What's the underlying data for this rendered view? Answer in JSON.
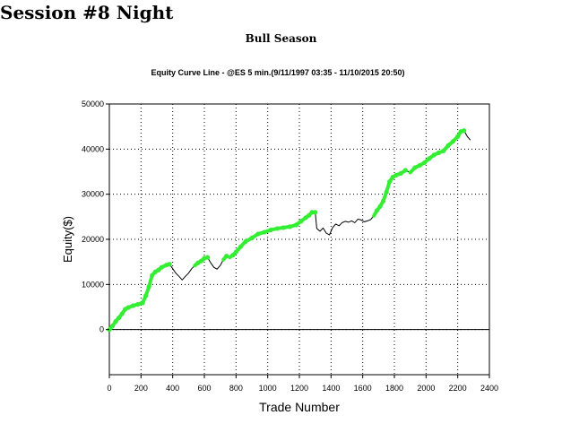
{
  "page": {
    "title": "Session #8 Night",
    "subtitle": "Bull Season"
  },
  "colors": {
    "line": "#000000",
    "highlight": "#33ee33",
    "grid": "#000000"
  },
  "chart_data": {
    "type": "line",
    "title": "Equity Curve Line - @ES 5 min.(9/11/1997 03:35 - 11/10/2015 20:50)",
    "xlabel": "Trade Number",
    "ylabel": "Equity($)",
    "xlim": [
      0,
      2400
    ],
    "ylim": [
      -10000,
      50000
    ],
    "x_ticks": [
      0,
      200,
      400,
      600,
      800,
      1000,
      1200,
      1400,
      1600,
      1800,
      2000,
      2200,
      2400
    ],
    "y_ticks": [
      0,
      10000,
      20000,
      30000,
      40000,
      50000
    ],
    "grid": true,
    "legend": "none",
    "series": [
      {
        "x": [
          0,
          20,
          40,
          60,
          80,
          100,
          120,
          150,
          180,
          210,
          230,
          250,
          270,
          290,
          310,
          330,
          360,
          380,
          400,
          420,
          440,
          460,
          480,
          500,
          520,
          540,
          560,
          580,
          600,
          620,
          640,
          660,
          680,
          700,
          720,
          740,
          760,
          780,
          800,
          830,
          860,
          900,
          940,
          980,
          1020,
          1060,
          1100,
          1140,
          1180,
          1210,
          1240,
          1260,
          1280,
          1300,
          1310,
          1330,
          1350,
          1370,
          1390,
          1410,
          1430,
          1450,
          1470,
          1490,
          1510,
          1530,
          1550,
          1570,
          1590,
          1610,
          1630,
          1650,
          1670,
          1690,
          1710,
          1730,
          1750,
          1770,
          1790,
          1810,
          1840,
          1870,
          1900,
          1930,
          1960,
          1990,
          2020,
          2050,
          2080,
          2110,
          2140,
          2170,
          2200,
          2220,
          2240,
          2260,
          2280
        ],
        "y": [
          0,
          800,
          1800,
          2600,
          3500,
          4500,
          4900,
          5300,
          5600,
          5900,
          7500,
          9500,
          12000,
          12800,
          13200,
          13800,
          14300,
          14500,
          13500,
          12500,
          11800,
          11000,
          11800,
          12500,
          13500,
          14200,
          14800,
          15200,
          15800,
          16000,
          14800,
          13800,
          13400,
          14200,
          15500,
          16300,
          16000,
          16500,
          17200,
          18400,
          19500,
          20300,
          21200,
          21600,
          22100,
          22400,
          22600,
          22800,
          23200,
          24000,
          24800,
          25300,
          26000,
          26000,
          22400,
          21800,
          22500,
          21400,
          21000,
          22600,
          23400,
          23000,
          23700,
          24000,
          23800,
          24100,
          23700,
          24500,
          24300,
          23900,
          24100,
          24400,
          25200,
          26400,
          27300,
          28500,
          30500,
          32800,
          33800,
          34200,
          34600,
          35300,
          34800,
          35900,
          36400,
          37000,
          37900,
          38700,
          39200,
          39600,
          40800,
          41700,
          42800,
          43900,
          44100,
          42800,
          42000
        ]
      }
    ]
  }
}
